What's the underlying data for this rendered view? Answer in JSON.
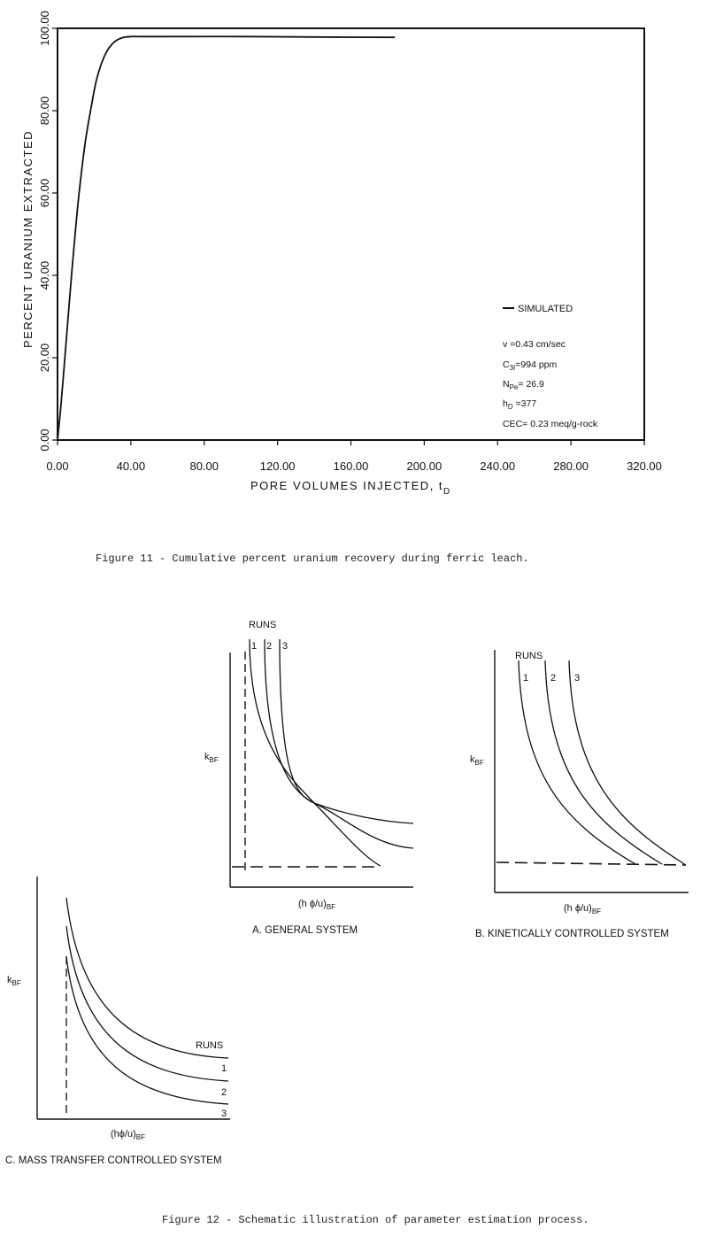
{
  "fig11": {
    "caption": "Figure 11 - Cumulative percent uranium recovery during ferric leach.",
    "chart_data": {
      "type": "line",
      "xlabel": "PORE VOLUMES INJECTED, t",
      "xlabel_sub": "D",
      "ylabel": "PERCENT URANIUM EXTRACTED",
      "xlim": [
        0,
        320
      ],
      "ylim": [
        0,
        100
      ],
      "x_ticks": [
        "0.00",
        "40.00",
        "80.00",
        "120.00",
        "160.00",
        "200.00",
        "240.00",
        "280.00",
        "320.00"
      ],
      "y_ticks": [
        "0.00",
        "20.00",
        "40.00",
        "60.00",
        "80.00",
        "100.00"
      ],
      "series": [
        {
          "name": "SIMULATED",
          "x": [
            0,
            2,
            4,
            6,
            8,
            10,
            12,
            15,
            18,
            21,
            24,
            27,
            30,
            33,
            36,
            40,
            45,
            60,
            100,
            140,
            184
          ],
          "y": [
            0,
            9,
            20,
            31,
            42,
            52,
            61,
            72,
            80,
            87,
            91.5,
            94.5,
            96.3,
            97.3,
            97.8,
            98.0,
            98.0,
            98.0,
            98.0,
            97.9,
            97.8
          ]
        }
      ],
      "legend_position": "bottom-right",
      "params": {
        "v": "v  =0.43 cm/sec",
        "c3i_main": "C",
        "c3i_sub": "3I",
        "c3i_rest": "=994  ppm",
        "npe_main": "N",
        "npe_sub": "Pe",
        "npe_rest": "= 26.9",
        "hd_main": "h",
        "hd_sub": "D",
        "hd_rest": " =377",
        "cec": "CEC= 0.23  meq/g-rock"
      }
    }
  },
  "fig12": {
    "caption": "Figure 12 - Schematic illustration of parameter estimation process.",
    "panels": {
      "a": {
        "title": "A. GENERAL SYSTEM",
        "runs": "RUNS",
        "run_labels": [
          "1",
          "2",
          "3"
        ],
        "ylabel_main": "k",
        "ylabel_sub": "BF",
        "xlabel_main": "(h ϕ/u)",
        "xlabel_sub": "BF"
      },
      "b": {
        "title": "B. KINETICALLY CONTROLLED SYSTEM",
        "runs": "RUNS",
        "run_labels": [
          "1",
          "2",
          "3"
        ],
        "ylabel_main": "k",
        "ylabel_sub": "BF",
        "xlabel_main": "(h ϕ/u)",
        "xlabel_sub": "BF"
      },
      "c": {
        "title": "C. MASS TRANSFER CONTROLLED SYSTEM",
        "runs": "RUNS",
        "run_labels": [
          "1",
          "2",
          "3"
        ],
        "ylabel_main": "k",
        "ylabel_sub": "BF",
        "xlabel_main": "(hϕ/u)",
        "xlabel_sub": "BF"
      }
    }
  }
}
